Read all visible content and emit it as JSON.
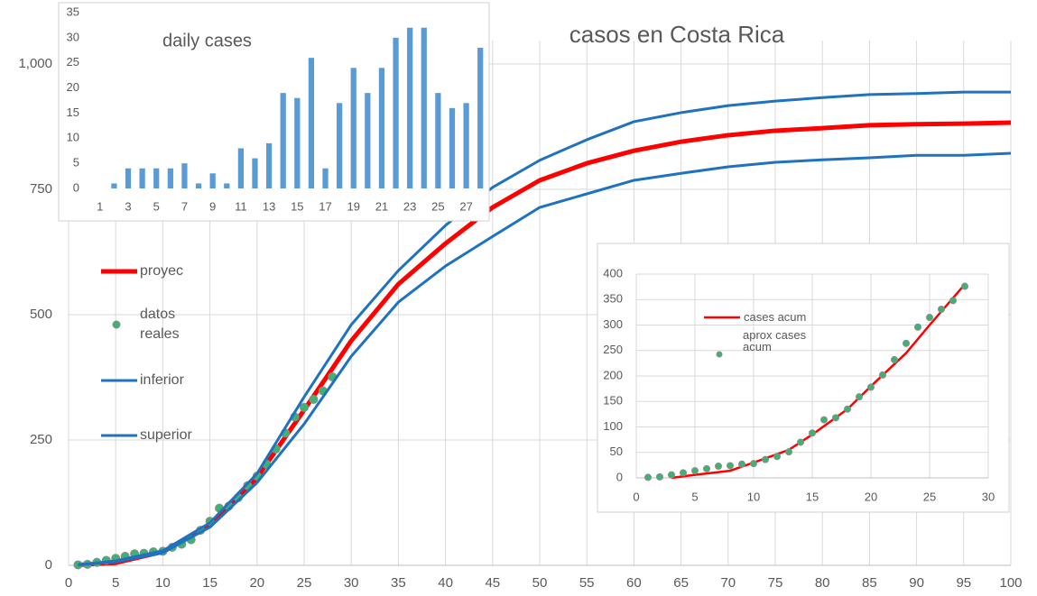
{
  "chart_data": [
    {
      "type": "line",
      "title": "casos en Costa Rica",
      "xlim": [
        0,
        100
      ],
      "xticks": [
        0,
        5,
        10,
        15,
        20,
        25,
        30,
        35,
        40,
        45,
        50,
        55,
        60,
        65,
        70,
        75,
        80,
        85,
        90,
        95,
        100
      ],
      "ylim": [
        0,
        1000
      ],
      "yticks": [
        0,
        250,
        500,
        750,
        {
          "value": 1000,
          "label": "1,000"
        }
      ],
      "grid": true,
      "series": [
        {
          "name": "proyec",
          "color": "#ff0000",
          "style": "line",
          "x": [
            1,
            5,
            10,
            15,
            20,
            25,
            30,
            35,
            40,
            45,
            50,
            55,
            60,
            65,
            70,
            75,
            80,
            85,
            90,
            95,
            100
          ],
          "values": [
            1,
            5,
            27,
            80,
            175,
            310,
            448,
            561,
            642,
            714,
            768,
            802,
            827,
            845,
            858,
            867,
            872,
            878,
            880,
            881,
            883
          ]
        },
        {
          "name": "datos reales",
          "color": "#3cb371",
          "style": "markers",
          "x": [
            1,
            2,
            3,
            4,
            5,
            6,
            7,
            8,
            9,
            10,
            11,
            12,
            13,
            14,
            15,
            16,
            17,
            18,
            19,
            20,
            21,
            22,
            23,
            24,
            25,
            26,
            27,
            28
          ],
          "values": [
            1,
            2,
            6,
            10,
            14,
            18,
            23,
            24,
            27,
            28,
            36,
            42,
            51,
            70,
            88,
            114,
            118,
            135,
            159,
            178,
            202,
            232,
            264,
            296,
            315,
            331,
            348,
            376
          ]
        },
        {
          "name": "inferior",
          "color": "#1f72c0",
          "style": "line",
          "x": [
            1,
            5,
            10,
            15,
            20,
            25,
            30,
            35,
            40,
            45,
            50,
            55,
            60,
            65,
            70,
            75,
            80,
            85,
            90,
            95,
            100
          ],
          "values": [
            1,
            7,
            25,
            76,
            165,
            282,
            417,
            525,
            597,
            656,
            714,
            741,
            768,
            782,
            795,
            804,
            809,
            813,
            818,
            818,
            822
          ]
        },
        {
          "name": "superior",
          "color": "#1f72c0",
          "style": "line",
          "x": [
            1,
            5,
            10,
            15,
            20,
            25,
            30,
            35,
            40,
            45,
            50,
            55,
            60,
            65,
            70,
            75,
            80,
            85,
            90,
            95,
            100
          ],
          "values": [
            1,
            9,
            29,
            85,
            183,
            336,
            480,
            588,
            678,
            754,
            808,
            849,
            885,
            903,
            917,
            926,
            933,
            939,
            941,
            944,
            944
          ]
        }
      ]
    },
    {
      "type": "bar",
      "title": "daily cases",
      "color": "#5b9bd5",
      "categories": [
        1,
        null,
        3,
        null,
        5,
        null,
        7,
        null,
        9,
        null,
        11,
        null,
        13,
        null,
        15,
        null,
        17,
        null,
        19,
        null,
        21,
        null,
        23,
        null,
        25,
        null,
        27,
        null
      ],
      "values": [
        0,
        1,
        4,
        4,
        4,
        4,
        5,
        1,
        3,
        1,
        8,
        6,
        9,
        19,
        18,
        26,
        4,
        17,
        24,
        19,
        24,
        30,
        32,
        32,
        19,
        16,
        17,
        28
      ],
      "ylim": [
        0,
        35
      ],
      "yticks": [
        0,
        5,
        10,
        15,
        20,
        25,
        30,
        35
      ]
    },
    {
      "type": "line",
      "xlim": [
        0,
        30
      ],
      "xticks": [
        0,
        5,
        10,
        15,
        20,
        25,
        30
      ],
      "ylim": [
        0,
        400
      ],
      "yticks": [
        0,
        50,
        100,
        150,
        200,
        250,
        300,
        350,
        400
      ],
      "grid": true,
      "series": [
        {
          "name": "cases acum",
          "color": "#ff0000",
          "style": "line",
          "x": [
            3,
            5,
            8,
            10,
            13,
            15,
            18,
            20,
            23,
            25,
            28
          ],
          "values": [
            0,
            6,
            14,
            30,
            55,
            85,
            135,
            180,
            245,
            300,
            380
          ]
        },
        {
          "name": "aprox cases acum",
          "color": "#3cb371",
          "style": "markers",
          "x": [
            1,
            2,
            3,
            4,
            5,
            6,
            7,
            8,
            9,
            10,
            11,
            12,
            13,
            14,
            15,
            16,
            17,
            18,
            19,
            20,
            21,
            22,
            23,
            24,
            25,
            26,
            27,
            28
          ],
          "values": [
            1,
            2,
            6,
            10,
            14,
            18,
            23,
            24,
            27,
            28,
            36,
            42,
            51,
            70,
            88,
            114,
            118,
            135,
            159,
            178,
            202,
            232,
            264,
            296,
            315,
            331,
            348,
            376
          ]
        }
      ]
    }
  ]
}
